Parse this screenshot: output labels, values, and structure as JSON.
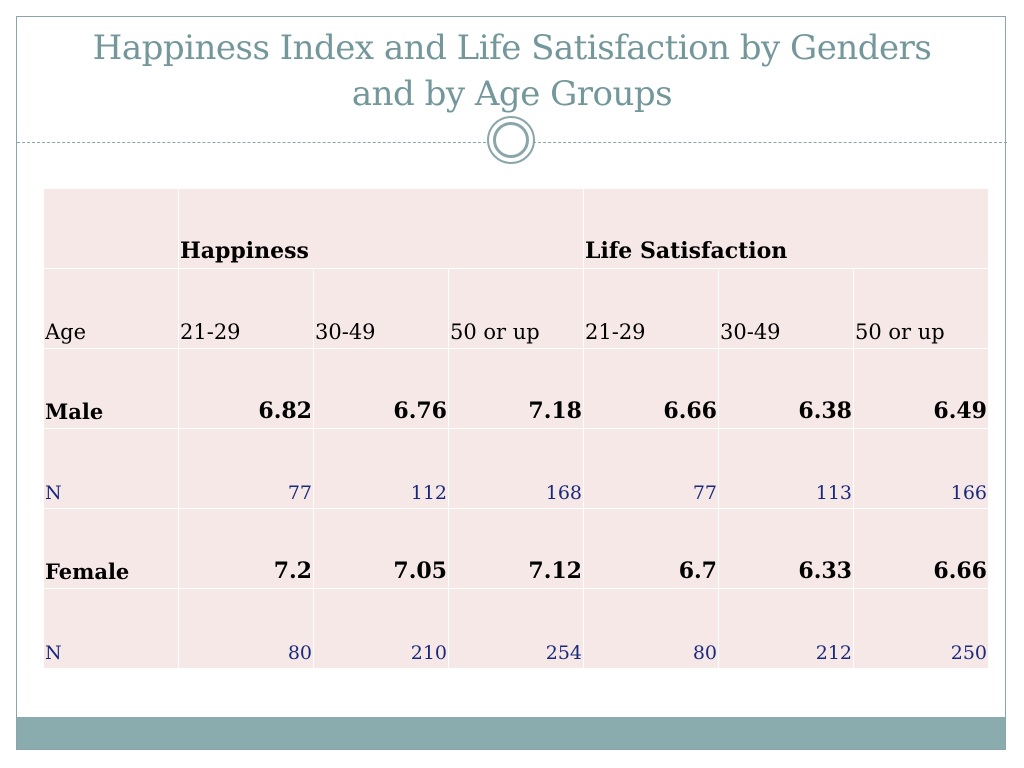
{
  "slide": {
    "title_line1": "Happiness Index and Life Satisfaction by Genders",
    "title_line2": "and by Age Groups"
  },
  "table": {
    "group_headers": [
      "Happiness",
      "Life Satisfaction"
    ],
    "row_label_age": "Age",
    "age_groups": [
      "21-29",
      "30-49",
      "50 or up",
      "21-29",
      "30-49",
      "50 or up"
    ],
    "rows": [
      {
        "label": "Male",
        "values": [
          "6.82",
          "6.76",
          "7.18",
          "6.66",
          "6.38",
          "6.49"
        ]
      },
      {
        "label": "N",
        "values": [
          "77",
          "112",
          "168",
          "77",
          "113",
          "166"
        ]
      },
      {
        "label": "Female",
        "values": [
          "7.2",
          "7.05",
          "7.12",
          "6.7",
          "6.33",
          "6.66"
        ]
      },
      {
        "label": "N",
        "values": [
          "80",
          "210",
          "254",
          "80",
          "212",
          "250"
        ]
      }
    ]
  },
  "colors": {
    "title": "#73979b",
    "cell_background": "#f7e8e8",
    "accent": "#8aacae",
    "n_text": "#1a2a7a"
  }
}
